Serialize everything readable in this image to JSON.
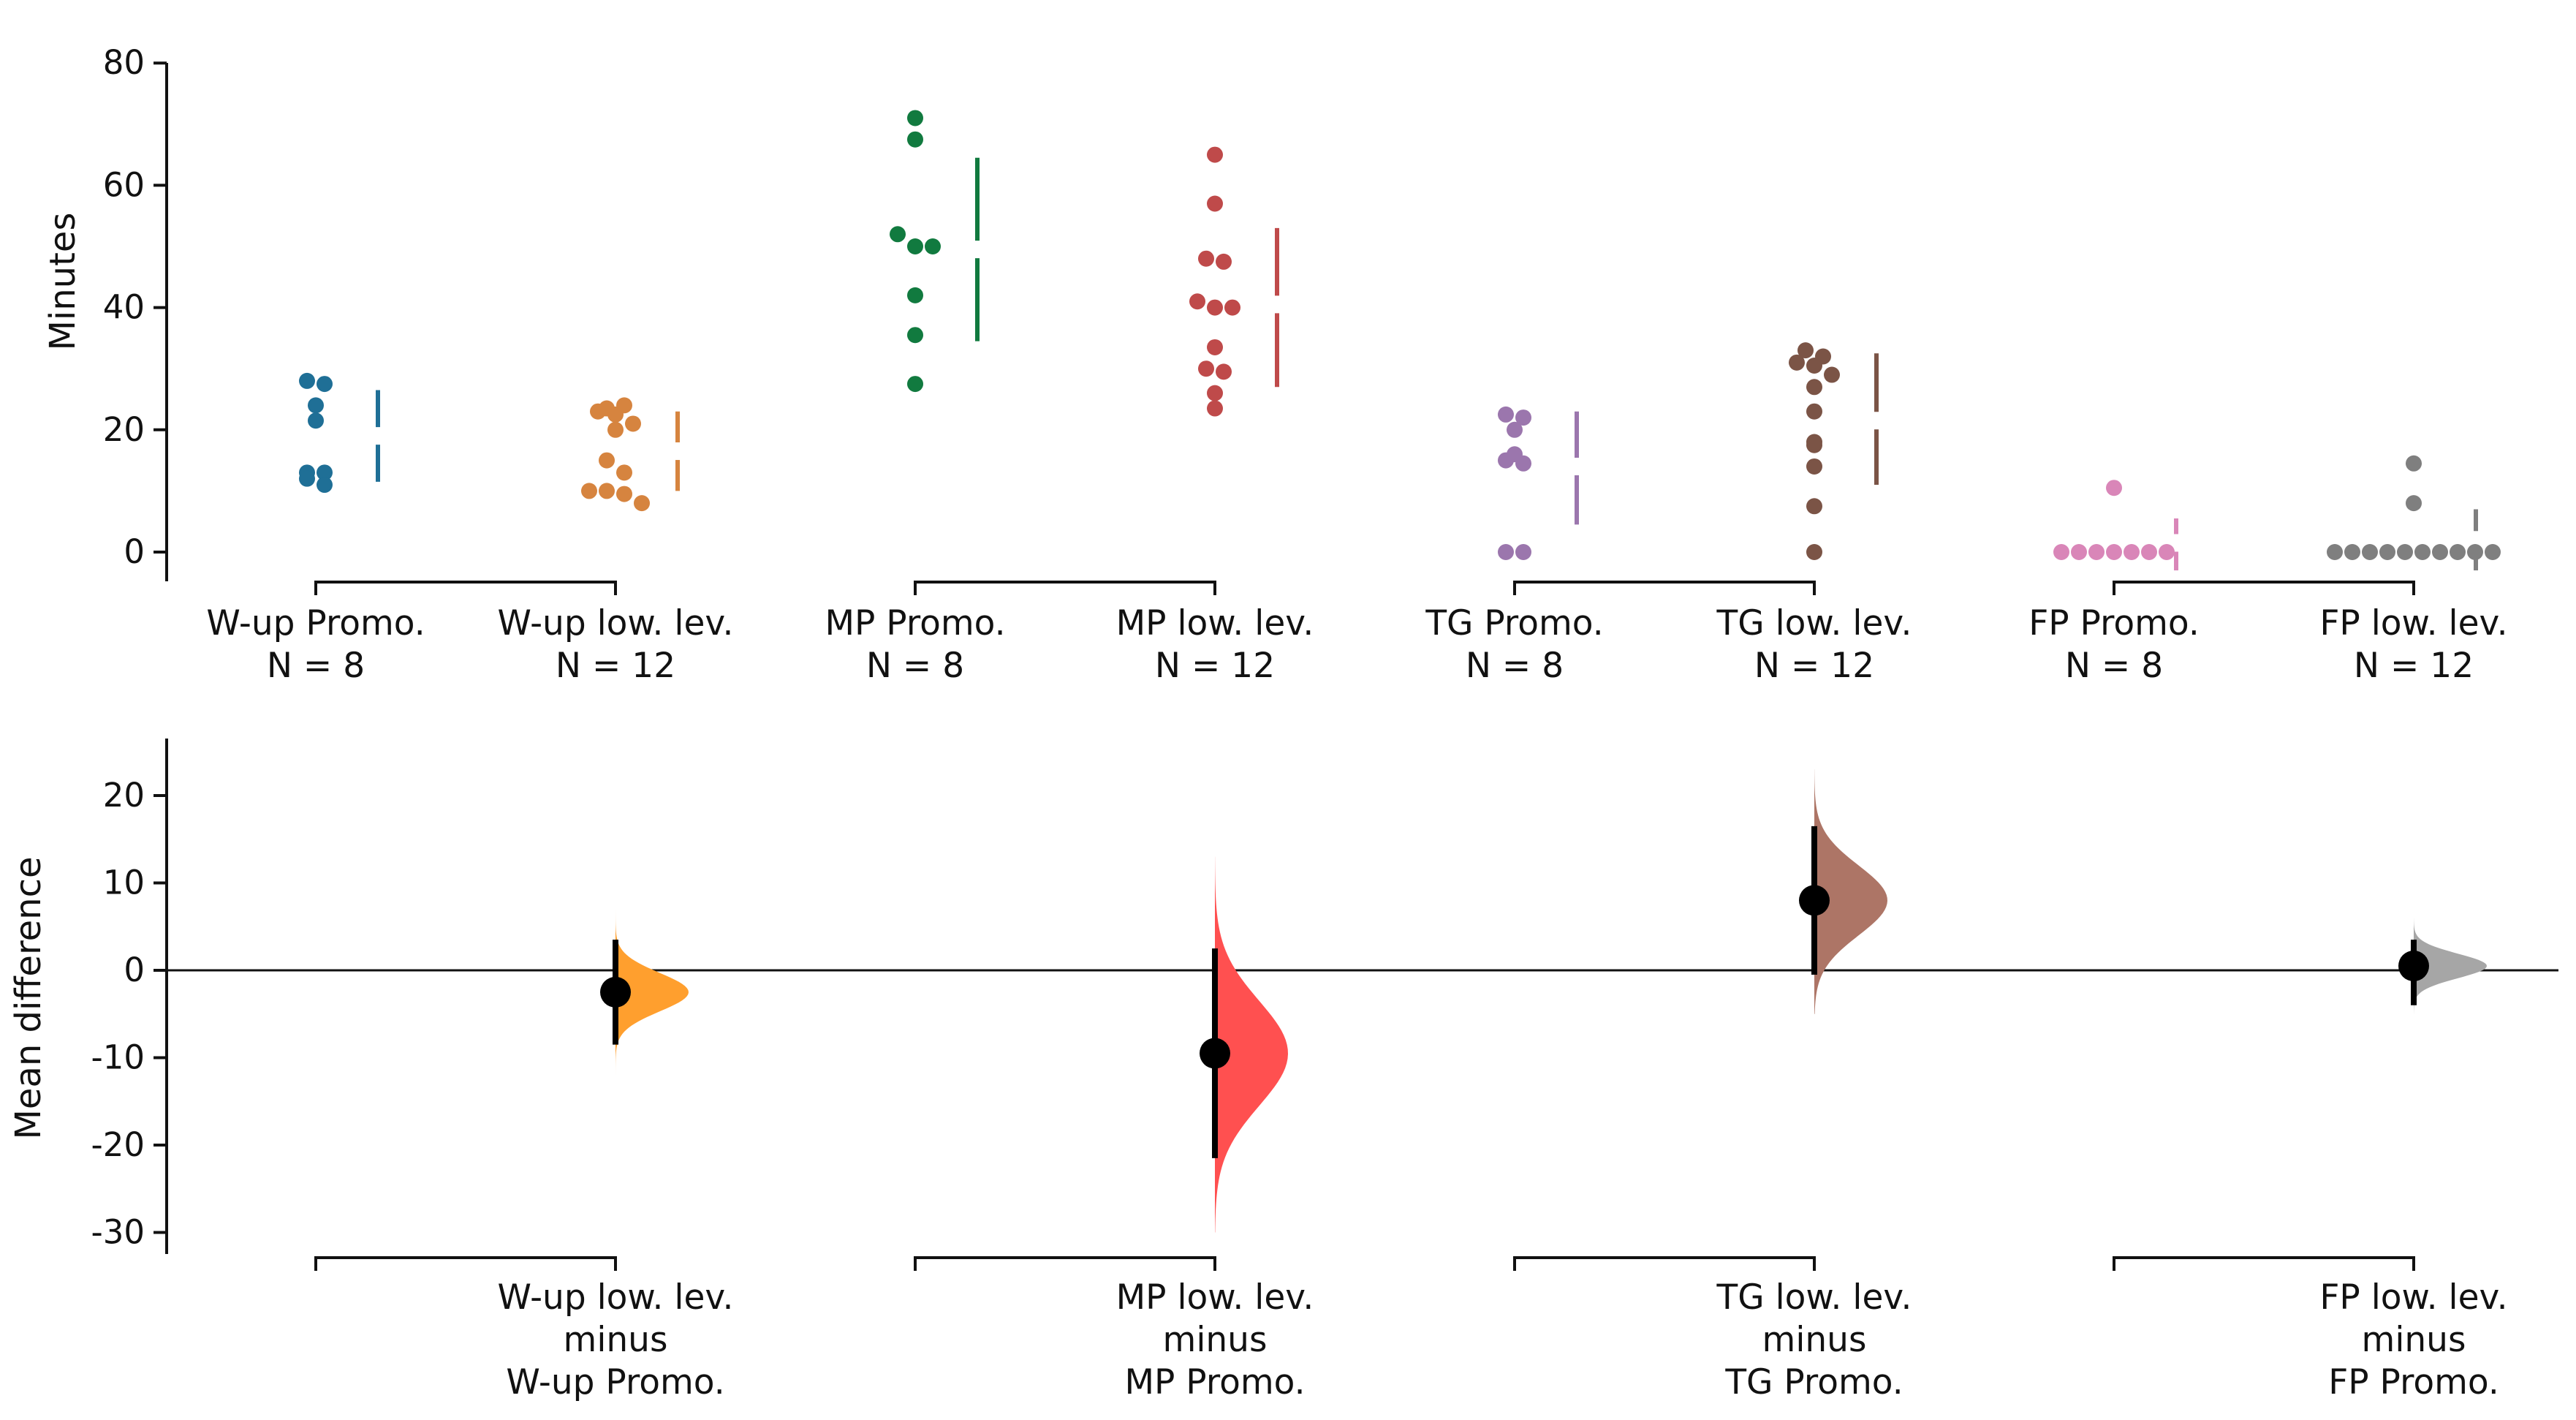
{
  "chart_data": [
    {
      "type": "scatter",
      "subtype": "swarm",
      "ylabel": "Minutes",
      "ylim": [
        -5,
        82
      ],
      "yticks": [
        0,
        20,
        40,
        60,
        80
      ],
      "pairs": [
        [
          "W-up Promo.",
          "W-up low. lev."
        ],
        [
          "MP Promo.",
          "MP low. lev."
        ],
        [
          "TG Promo.",
          "TG low. lev."
        ],
        [
          "FP Promo.",
          "FP low. lev."
        ]
      ],
      "groups": [
        {
          "name": "W-up Promo.",
          "n_label": "N = 8",
          "color": "#1f6f96",
          "values": [
            28,
            27.5,
            24,
            21.5,
            13,
            13,
            12,
            11
          ],
          "mean": 19,
          "sd_low": 11.5,
          "sd_high": 26.5
        },
        {
          "name": "W-up low. lev.",
          "n_label": "N = 12",
          "color": "#d6843f",
          "values": [
            23.5,
            24,
            23,
            22.5,
            21,
            20,
            15,
            13,
            10,
            10,
            9.5,
            8
          ],
          "mean": 16.5,
          "sd_low": 10,
          "sd_high": 23
        },
        {
          "name": "MP Promo.",
          "n_label": "N = 8",
          "color": "#117a3f",
          "values": [
            71,
            67.5,
            52,
            50,
            50,
            42,
            35.5,
            27.5
          ],
          "mean": 49.5,
          "sd_low": 34.5,
          "sd_high": 64.5
        },
        {
          "name": "MP low. lev.",
          "n_label": "N = 12",
          "color": "#bf4a4a",
          "values": [
            65,
            57,
            48,
            47.5,
            41,
            40,
            40,
            33.5,
            30,
            29.5,
            26,
            23.5
          ],
          "mean": 40.5,
          "sd_low": 27,
          "sd_high": 53
        },
        {
          "name": "TG Promo.",
          "n_label": "N = 8",
          "color": "#9b76ad",
          "values": [
            22.5,
            22,
            20,
            16,
            15,
            14.5,
            0,
            0
          ],
          "mean": 14,
          "sd_low": 4.5,
          "sd_high": 23
        },
        {
          "name": "TG low. lev.",
          "n_label": "N = 12",
          "color": "#7b5446",
          "values": [
            33,
            32,
            31,
            30.5,
            29,
            27,
            23,
            18,
            17.5,
            14,
            7.5,
            0
          ],
          "mean": 21.5,
          "sd_low": 11,
          "sd_high": 32.5
        },
        {
          "name": "FP Promo.",
          "n_label": "N = 8",
          "color": "#d986b8",
          "values": [
            10.5,
            0,
            0,
            0,
            0,
            0,
            0,
            0
          ],
          "mean": 1.5,
          "sd_low": -3,
          "sd_high": 5.5
        },
        {
          "name": "FP low. lev.",
          "n_label": "N = 12",
          "color": "#7f7f7f",
          "values": [
            14.5,
            8,
            0,
            0,
            0,
            0,
            0,
            0,
            0,
            0,
            0,
            0
          ],
          "mean": 2,
          "sd_low": -3,
          "sd_high": 7
        }
      ]
    },
    {
      "type": "scatter",
      "subtype": "estimation",
      "ylabel": "Mean difference",
      "ylim": [
        -32,
        26
      ],
      "yticks": [
        20,
        10,
        0,
        -10,
        -20,
        -30
      ],
      "comparisons": [
        {
          "label_lines": [
            "W-up low. lev.",
            "minus",
            "W-up Promo."
          ],
          "color": "#ff9f2e",
          "mean": -2.5,
          "ci_low": -8.5,
          "ci_high": 3.5,
          "dist_low": -12,
          "dist_high": 7,
          "dist_sd": 2.2
        },
        {
          "label_lines": [
            "MP low. lev.",
            "minus",
            "MP Promo."
          ],
          "color": "#ff5050",
          "mean": -9.5,
          "ci_low": -21.5,
          "ci_high": 2.5,
          "dist_low": -30,
          "dist_high": 13,
          "dist_sd": 6
        },
        {
          "label_lines": [
            "TG low. lev.",
            "minus",
            "TG Promo."
          ],
          "color": "#ad7566",
          "mean": 8,
          "ci_low": -0.5,
          "ci_high": 16.5,
          "dist_low": -5,
          "dist_high": 23,
          "dist_sd": 4
        },
        {
          "label_lines": [
            "FP low. lev.",
            "minus",
            "FP Promo."
          ],
          "color": "#a6a6a6",
          "mean": 0.5,
          "ci_low": -4,
          "ci_high": 3.5,
          "dist_low": -5,
          "dist_high": 6,
          "dist_sd": 1.4
        }
      ]
    }
  ]
}
